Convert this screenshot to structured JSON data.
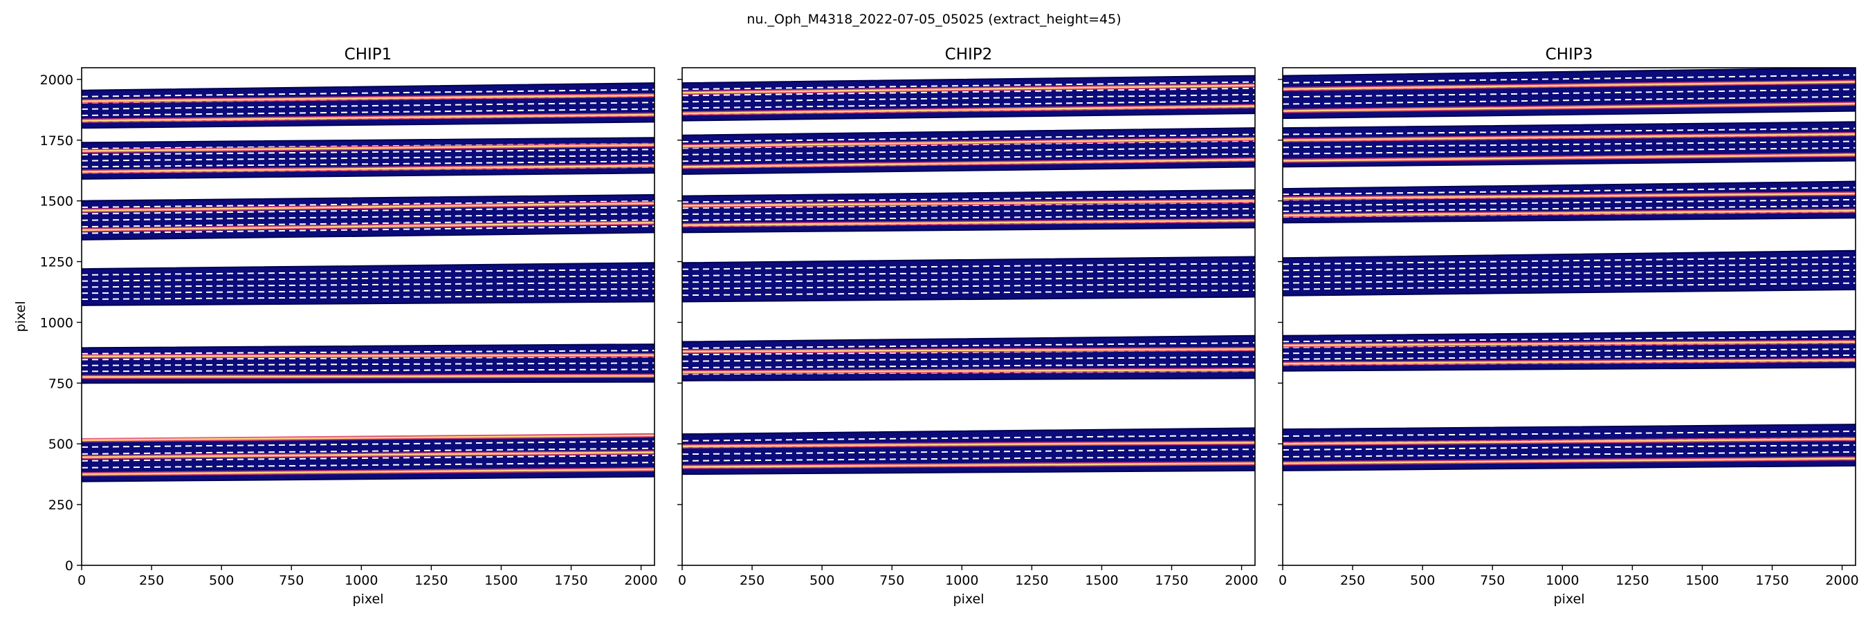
{
  "figure": {
    "suptitle": "nu._Oph_M4318_2022-07-05_05025  (extract_height=45)"
  },
  "chart_data": [
    {
      "type": "heatmap",
      "title": "CHIP1",
      "xlabel": "pixel",
      "ylabel": "pixel",
      "xlim": [
        0,
        2048
      ],
      "ylim": [
        0,
        2048
      ],
      "xticks": [
        0,
        250,
        500,
        750,
        1000,
        1250,
        1500,
        1750,
        2000
      ],
      "yticks": [
        0,
        250,
        500,
        750,
        1000,
        1250,
        1500,
        1750,
        2000
      ],
      "xtick_labels": [
        "0",
        "250",
        "500",
        "750",
        "1000",
        "1250",
        "1500",
        "1750",
        "2000"
      ],
      "ytick_labels": [
        "0",
        "250",
        "500",
        "750",
        "1000",
        "1250",
        "1500",
        "1750",
        "2000"
      ],
      "orders": [
        {
          "bottom_left": 345,
          "top_left": 515,
          "bottom_right": 365,
          "top_right": 540,
          "traces": [
            375,
            445,
            515
          ]
        },
        {
          "bottom_left": 750,
          "top_left": 895,
          "bottom_right": 755,
          "top_right": 910,
          "traces": [
            775,
            860
          ]
        },
        {
          "bottom_left": 1070,
          "top_left": 1220,
          "bottom_right": 1085,
          "top_right": 1245,
          "traces": []
        },
        {
          "bottom_left": 1340,
          "top_left": 1500,
          "bottom_right": 1370,
          "top_right": 1525,
          "traces": [
            1380,
            1460
          ]
        },
        {
          "bottom_left": 1590,
          "top_left": 1740,
          "bottom_right": 1615,
          "top_right": 1760,
          "traces": [
            1620,
            1705
          ]
        },
        {
          "bottom_left": 1800,
          "top_left": 1955,
          "bottom_right": 1825,
          "top_right": 1985,
          "traces": [
            1830,
            1910
          ]
        }
      ]
    },
    {
      "type": "heatmap",
      "title": "CHIP2",
      "xlabel": "pixel",
      "ylabel": "",
      "xlim": [
        0,
        2048
      ],
      "ylim": [
        0,
        2048
      ],
      "xticks": [
        0,
        250,
        500,
        750,
        1000,
        1250,
        1500,
        1750,
        2000
      ],
      "yticks": [
        0,
        250,
        500,
        750,
        1000,
        1250,
        1500,
        1750,
        2000
      ],
      "xtick_labels": [
        "0",
        "250",
        "500",
        "750",
        "1000",
        "1250",
        "1500",
        "1750",
        "2000"
      ],
      "ytick_labels": [],
      "orders": [
        {
          "bottom_left": 375,
          "top_left": 540,
          "bottom_right": 390,
          "top_right": 565,
          "traces": [
            405,
            490
          ]
        },
        {
          "bottom_left": 760,
          "top_left": 920,
          "bottom_right": 770,
          "top_right": 945,
          "traces": [
            795,
            880
          ]
        },
        {
          "bottom_left": 1085,
          "top_left": 1245,
          "bottom_right": 1105,
          "top_right": 1270,
          "traces": []
        },
        {
          "bottom_left": 1370,
          "top_left": 1520,
          "bottom_right": 1390,
          "top_right": 1545,
          "traces": [
            1400,
            1480
          ]
        },
        {
          "bottom_left": 1610,
          "top_left": 1770,
          "bottom_right": 1640,
          "top_right": 1800,
          "traces": [
            1640,
            1725
          ]
        },
        {
          "bottom_left": 1830,
          "top_left": 1985,
          "bottom_right": 1860,
          "top_right": 2015,
          "traces": [
            1860,
            1945
          ]
        }
      ]
    },
    {
      "type": "heatmap",
      "title": "CHIP3",
      "xlabel": "pixel",
      "ylabel": "",
      "xlim": [
        0,
        2048
      ],
      "ylim": [
        0,
        2048
      ],
      "xticks": [
        0,
        250,
        500,
        750,
        1000,
        1250,
        1500,
        1750,
        2000
      ],
      "yticks": [
        0,
        250,
        500,
        750,
        1000,
        1250,
        1500,
        1750,
        2000
      ],
      "xtick_labels": [
        "0",
        "250",
        "500",
        "750",
        "1000",
        "1250",
        "1500",
        "1750",
        "2000"
      ],
      "ytick_labels": [],
      "orders": [
        {
          "bottom_left": 390,
          "top_left": 560,
          "bottom_right": 410,
          "top_right": 580,
          "traces": [
            420,
            500
          ]
        },
        {
          "bottom_left": 800,
          "top_left": 945,
          "bottom_right": 815,
          "top_right": 965,
          "traces": [
            830,
            905
          ]
        },
        {
          "bottom_left": 1110,
          "top_left": 1265,
          "bottom_right": 1135,
          "top_right": 1295,
          "traces": []
        },
        {
          "bottom_left": 1410,
          "top_left": 1550,
          "bottom_right": 1430,
          "top_right": 1580,
          "traces": [
            1440,
            1510
          ]
        },
        {
          "bottom_left": 1640,
          "top_left": 1800,
          "bottom_right": 1665,
          "top_right": 1825,
          "traces": [
            1665,
            1750
          ]
        },
        {
          "bottom_left": 1840,
          "top_left": 2015,
          "bottom_right": 1870,
          "top_right": 2048,
          "traces": [
            1870,
            1960
          ]
        }
      ]
    }
  ],
  "colors": {
    "band": "#0b0b7a",
    "band_edge": "#000050",
    "trace_core": "#ffd27a",
    "trace_glow": "#e8406e",
    "guide": "#ffffff",
    "axes": "#000000"
  }
}
